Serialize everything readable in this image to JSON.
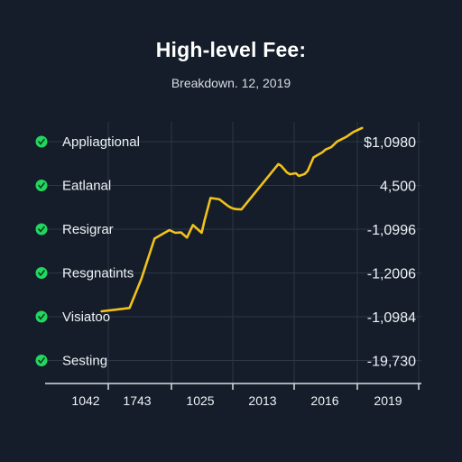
{
  "chart": {
    "title": "High-level Fee:",
    "subtitle": "Breakdown. 12, 2019"
  },
  "colors": {
    "background": "#141d29",
    "line": "#f2c21b",
    "dot": "#22d75f",
    "grid": "#2b3646",
    "axis": "#d8dde4",
    "text": "#eef2f6"
  },
  "chart_data": {
    "type": "line",
    "title": "High-level Fee:",
    "subtitle": "Breakdown. 12, 2019",
    "x_tick_labels": [
      "1042",
      "1743",
      "1025",
      "2013",
      "2016",
      "2019"
    ],
    "rows": [
      {
        "label": "Appliagtional",
        "value": "$1,0980"
      },
      {
        "label": "Eatlanal",
        "value": "4,500"
      },
      {
        "label": "Resigrar",
        "value": "-1,0996"
      },
      {
        "label": "Resgnatints",
        "value": "-1,2006"
      },
      {
        "label": "Visiatoo",
        "value": "-1,0984"
      },
      {
        "label": "Sesting",
        "value": "-19,730"
      }
    ],
    "series": [
      {
        "x": [
          0.0,
          0.19,
          0.27,
          0.36,
          0.42,
          0.46,
          0.5,
          0.54,
          0.58,
          0.62,
          0.68,
          0.7,
          0.74,
          0.8,
          0.86,
          0.88,
          0.9,
          0.92,
          0.95,
          1.2,
          1.22,
          1.26,
          1.28,
          1.32,
          1.34,
          1.38,
          1.4,
          1.44,
          1.5,
          1.52,
          1.56,
          1.6,
          1.66,
          1.71,
          1.77
        ],
        "y": [
          0.4,
          0.5,
          1.36,
          2.55,
          2.7,
          2.8,
          2.72,
          2.73,
          2.58,
          2.95,
          2.72,
          3.1,
          3.75,
          3.71,
          3.51,
          3.46,
          3.43,
          3.42,
          3.41,
          4.75,
          4.7,
          4.5,
          4.45,
          4.48,
          4.4,
          4.46,
          4.55,
          4.95,
          5.1,
          5.18,
          5.25,
          5.42,
          5.55,
          5.7,
          5.82
        ],
        "xlim": [
          -0.2,
          2.62
        ],
        "ylim": [
          0,
          6.4
        ]
      }
    ],
    "grid": true
  }
}
